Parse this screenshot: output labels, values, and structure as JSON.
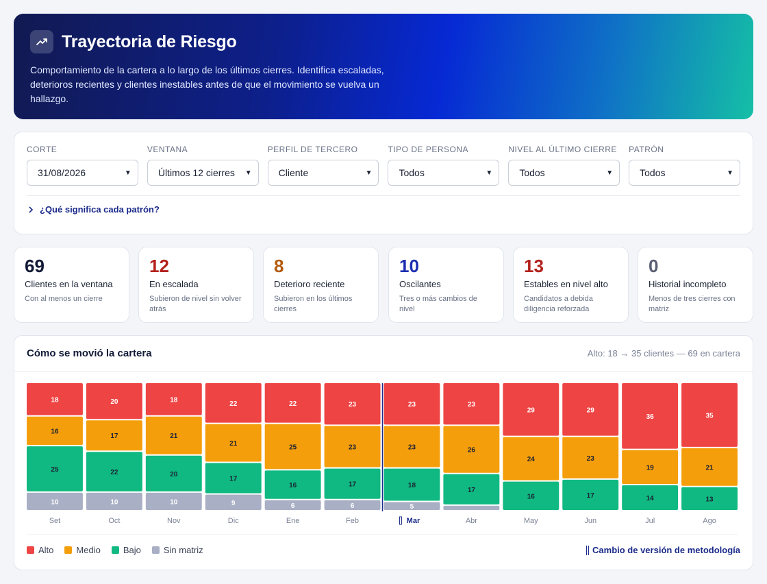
{
  "header": {
    "title": "Trayectoria de Riesgo",
    "description": "Comportamiento de la cartera a lo largo de los últimos cierres. Identifica escaladas, deterioros recientes y clientes inestables antes de que el movimiento se vuelva un hallazgo.",
    "icon": "trending-up-icon"
  },
  "filters": [
    {
      "label": "Corte",
      "value": "31/08/2026"
    },
    {
      "label": "Ventana",
      "value": "Últimos 12 cierres"
    },
    {
      "label": "Perfil de tercero",
      "value": "Cliente"
    },
    {
      "label": "Tipo de persona",
      "value": "Todos"
    },
    {
      "label": "Nivel al último cierre",
      "value": "Todos"
    },
    {
      "label": "Patrón",
      "value": "Todos"
    }
  ],
  "help_link": "¿Qué significa cada patrón?",
  "kpis": [
    {
      "value": "69",
      "label": "Clientes en la ventana",
      "sub": "Con al menos un cierre",
      "color": "#121a36"
    },
    {
      "value": "12",
      "label": "En escalada",
      "sub": "Subieron de nivel sin volver atrás",
      "color": "#b3211c"
    },
    {
      "value": "8",
      "label": "Deterioro reciente",
      "sub": "Subieron en los últimos cierres",
      "color": "#b35a0c"
    },
    {
      "value": "10",
      "label": "Oscilantes",
      "sub": "Tres o más cambios de nivel",
      "color": "#1c2fb0"
    },
    {
      "value": "13",
      "label": "Estables en nivel alto",
      "sub": "Candidatos a debida diligencia reforzada",
      "color": "#b3211c"
    },
    {
      "value": "0",
      "label": "Historial incompleto",
      "sub": "Menos de tres cierres con matriz",
      "color": "#5a6072"
    }
  ],
  "chart": {
    "title": "Cómo se movió la cartera",
    "note": "Alto: 18 → 35 clientes — 69 en cartera",
    "method_label": "Cambio de versión de metodología",
    "legend": [
      {
        "name": "Alto",
        "color": "#ee4444"
      },
      {
        "name": "Medio",
        "color": "#f59e0b"
      },
      {
        "name": "Bajo",
        "color": "#10b981"
      },
      {
        "name": "Sin matriz",
        "color": "#a9afc4"
      }
    ]
  },
  "chart_data": {
    "type": "bar",
    "stacked": true,
    "categories": [
      "Set",
      "Oct",
      "Nov",
      "Dic",
      "Ene",
      "Feb",
      "Mar",
      "Abr",
      "May",
      "Jun",
      "Jul",
      "Ago"
    ],
    "series": [
      {
        "name": "Alto",
        "values": [
          18,
          20,
          18,
          22,
          22,
          23,
          23,
          23,
          29,
          29,
          36,
          35
        ]
      },
      {
        "name": "Medio",
        "values": [
          16,
          17,
          21,
          21,
          25,
          23,
          23,
          26,
          24,
          23,
          19,
          21
        ]
      },
      {
        "name": "Bajo",
        "values": [
          25,
          22,
          20,
          17,
          16,
          17,
          18,
          17,
          16,
          17,
          14,
          13
        ]
      },
      {
        "name": "Sin matriz",
        "values": [
          10,
          10,
          10,
          9,
          6,
          6,
          5,
          3,
          0,
          0,
          0,
          0
        ]
      }
    ],
    "methodology_change": "Mar",
    "total": 69
  }
}
